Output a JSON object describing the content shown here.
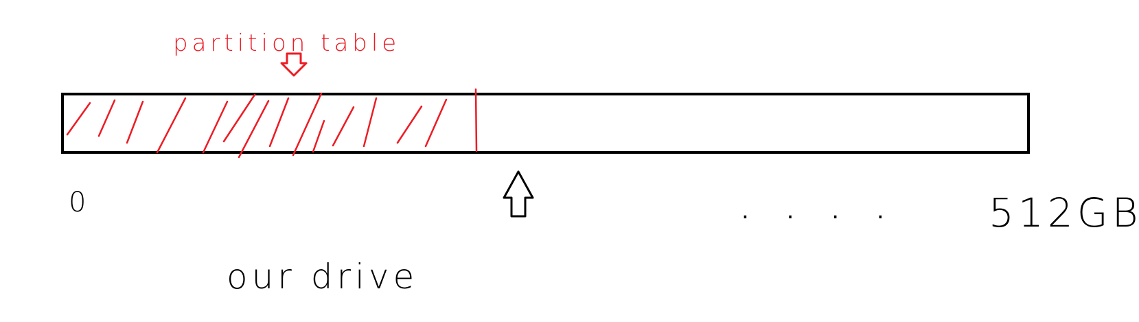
{
  "diagram": {
    "annotation_label": "partition table",
    "start_label": "0",
    "end_label": "512GB",
    "ellipsis": ". . . .",
    "caption": "our drive",
    "colors": {
      "annotation": "#ed1c24",
      "ink": "#000000",
      "background": "#ffffff"
    }
  }
}
